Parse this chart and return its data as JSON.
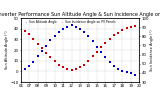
{
  "title": "Solar PV/Inverter Performance Sun Altitude Angle & Sun Incidence Angle on PV Panels",
  "blue_label": "Sun Altitude Angle",
  "red_label": "Sun Incidence Angle on PV Panels",
  "x_values": [
    6.5,
    7.0,
    7.5,
    8.0,
    8.5,
    9.0,
    9.5,
    10.0,
    10.5,
    11.0,
    11.5,
    12.0,
    12.5,
    13.0,
    13.5,
    14.0,
    14.5,
    15.0,
    15.5,
    16.0,
    16.5,
    17.0,
    17.5,
    18.0,
    18.5,
    19.0,
    19.5
  ],
  "blue_y": [
    2,
    5,
    9,
    14,
    19,
    24,
    29,
    33,
    37,
    40,
    42,
    43,
    42,
    40,
    37,
    33,
    28,
    23,
    18,
    13,
    9,
    5,
    2,
    0,
    -1,
    -2,
    -3
  ],
  "red_y": [
    86,
    82,
    77,
    72,
    67,
    62,
    57,
    53,
    49,
    46,
    44,
    43,
    44,
    46,
    49,
    53,
    58,
    63,
    68,
    73,
    77,
    81,
    84,
    87,
    89,
    90,
    91
  ],
  "xlim": [
    6.0,
    20.0
  ],
  "ylim_left": [
    -10,
    50
  ],
  "ylim_right": [
    30,
    100
  ],
  "blue_color": "#0000cc",
  "red_color": "#cc0000",
  "bg_color": "#ffffff",
  "grid_color": "#999999",
  "marker_size": 1.5,
  "title_fontsize": 3.5,
  "tick_fontsize": 2.8,
  "label_fontsize": 2.5,
  "ylabel_left": "Sun Altitude Angle (°)",
  "ylabel_right": "Sun Incidence Angle (°)",
  "xticks": [
    6,
    7,
    8,
    9,
    10,
    11,
    12,
    13,
    14,
    15,
    16,
    17,
    18,
    19,
    20
  ],
  "xtick_labels": [
    "06",
    "07",
    "08",
    "09",
    "10",
    "11",
    "12",
    "13",
    "14",
    "15",
    "16",
    "17",
    "18",
    "19",
    "20"
  ],
  "yticks_left": [
    -10,
    0,
    10,
    20,
    30,
    40,
    50
  ],
  "yticks_right": [
    30,
    40,
    50,
    60,
    70,
    80,
    90,
    100
  ]
}
